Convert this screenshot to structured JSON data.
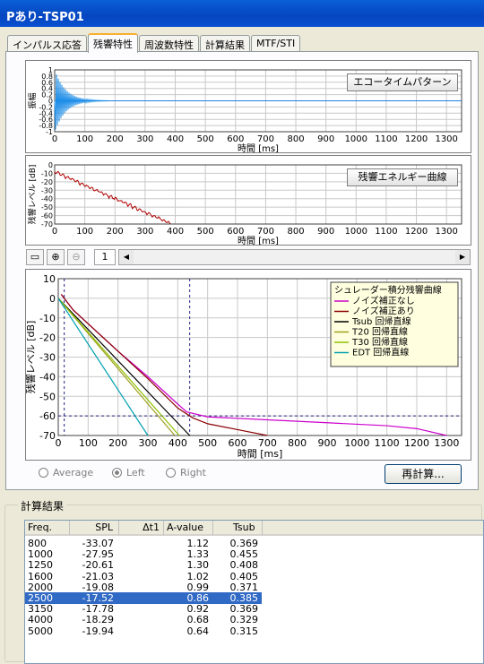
{
  "window": {
    "title": "Pあり-TSP01"
  },
  "tabs": [
    {
      "label": "インパルス応答"
    },
    {
      "label": "残響特性"
    },
    {
      "label": "周波数特性"
    },
    {
      "label": "計算結果"
    },
    {
      "label": "MTF/STI"
    }
  ],
  "echo_chart": {
    "button_label": "エコータイムパターン",
    "ylabel": "振幅",
    "xlabel": "時間 [ms]",
    "yticks": [
      "1",
      "0.8",
      "0.6",
      "0.4",
      "0.2",
      "0",
      "-0.2",
      "-0.4",
      "-0.6",
      "-0.8",
      "-1"
    ],
    "xticks": [
      "0",
      "100",
      "200",
      "300",
      "400",
      "500",
      "600",
      "700",
      "800",
      "900",
      "1000",
      "1100",
      "1200",
      "1300"
    ]
  },
  "energy_chart": {
    "button_label": "残響エネルギー曲線",
    "ylabel": "残響レベル [dB]",
    "xlabel": "時間 [ms]",
    "yticks": [
      "0",
      "-10",
      "-20",
      "-30",
      "-40",
      "-50",
      "-60",
      "-70"
    ],
    "xticks": [
      "0",
      "100",
      "200",
      "300",
      "400",
      "500",
      "600",
      "700",
      "800",
      "900",
      "1000",
      "1100",
      "1200",
      "1300"
    ]
  },
  "toolbar": {
    "page_value": "1",
    "left_arrow": "◀",
    "right_arrow": "▶"
  },
  "chart_data": {
    "type": "line",
    "xlabel": "時間 [ms]",
    "ylabel": "残響レベル [dB]",
    "xlim": [
      0,
      1350
    ],
    "ylim": [
      -70,
      10
    ],
    "xticks": [
      "0",
      "100",
      "200",
      "300",
      "400",
      "500",
      "600",
      "700",
      "800",
      "900",
      "1000",
      "1100",
      "1200",
      "1300"
    ],
    "yticks": [
      "10",
      "0",
      "-10",
      "-20",
      "-30",
      "-40",
      "-50",
      "-60",
      "-70"
    ],
    "grid": true,
    "legend_placement": "top-right",
    "legend_title": "シュレーダー積分残響曲線",
    "series": [
      {
        "name": "ノイズ補正なし",
        "color": "#cc00cc",
        "x": [
          10,
          50,
          100,
          200,
          300,
          400,
          430,
          500,
          700,
          900,
          1100,
          1200,
          1300
        ],
        "y": [
          2,
          -6,
          -13,
          -27,
          -40,
          -54,
          -58,
          -60.5,
          -62,
          -63.5,
          -65,
          -66.5,
          -70
        ]
      },
      {
        "name": "ノイズ補正あり",
        "color": "#8b0000",
        "x": [
          10,
          50,
          100,
          200,
          300,
          400,
          450,
          500,
          600,
          700
        ],
        "y": [
          2,
          -6,
          -13,
          -27,
          -41,
          -56,
          -61,
          -64,
          -67,
          -70
        ]
      },
      {
        "name": "Tsub 回帰直線",
        "color": "#000000",
        "x": [
          0,
          440
        ],
        "y": [
          0,
          -70
        ]
      },
      {
        "name": "T20 回帰直線",
        "color": "#a0a020",
        "x": [
          0,
          390
        ],
        "y": [
          0,
          -70
        ]
      },
      {
        "name": "T30 回帰直線",
        "color": "#90c000",
        "x": [
          0,
          405
        ],
        "y": [
          0,
          -70
        ]
      },
      {
        "name": "EDT 回帰直線",
        "color": "#00a0b0",
        "x": [
          0,
          300
        ],
        "y": [
          0,
          -70
        ]
      }
    ],
    "reference_lines": [
      {
        "axis": "y",
        "value": -60
      },
      {
        "axis": "x",
        "value": 20
      },
      {
        "axis": "x",
        "value": 440
      }
    ]
  },
  "options": {
    "average": "Average",
    "left": "Left",
    "right": "Right",
    "recalc": "再計算..."
  },
  "results": {
    "group_label": "計算結果",
    "headers": [
      "Freq.",
      "SPL",
      "Δt1",
      "A-value",
      "Tsub"
    ],
    "rows": [
      [
        "800",
        "-33.07",
        "",
        "1.12",
        "0.369"
      ],
      [
        "1000",
        "-27.95",
        "",
        "1.33",
        "0.455"
      ],
      [
        "1250",
        "-20.61",
        "",
        "1.30",
        "0.408"
      ],
      [
        "1600",
        "-21.03",
        "",
        "1.02",
        "0.405"
      ],
      [
        "2000",
        "-19.08",
        "",
        "0.99",
        "0.371"
      ],
      [
        "2500",
        "-17.52",
        "",
        "0.86",
        "0.385"
      ],
      [
        "3150",
        "-17.78",
        "",
        "0.92",
        "0.369"
      ],
      [
        "4000",
        "-18.29",
        "",
        "0.68",
        "0.329"
      ],
      [
        "5000",
        "-19.94",
        "",
        "0.64",
        "0.315"
      ]
    ],
    "selected_freq": "2500"
  }
}
